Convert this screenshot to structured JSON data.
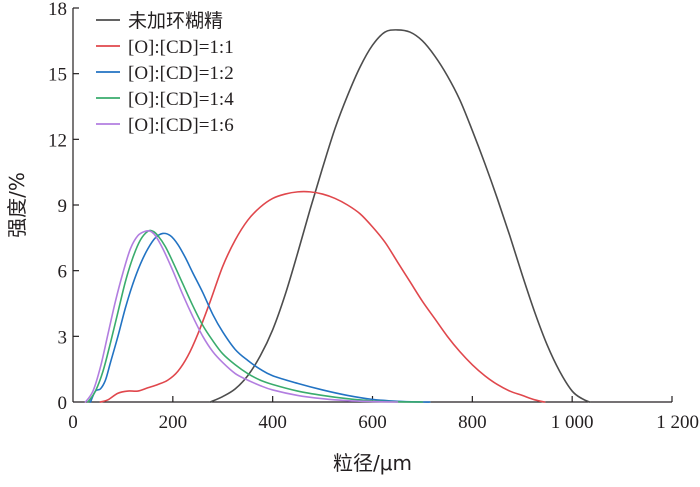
{
  "chart_data": {
    "type": "line",
    "title": "",
    "xlabel": "粒径/μm",
    "ylabel": "强度/%",
    "xlim": [
      0,
      1200
    ],
    "ylim": [
      0,
      18
    ],
    "xticks": [
      0,
      200,
      400,
      600,
      800,
      1000,
      1200
    ],
    "xtick_labels": [
      "0",
      "200",
      "400",
      "600",
      "800",
      "1 000",
      "1 200"
    ],
    "yticks": [
      0,
      3,
      6,
      9,
      12,
      15,
      18
    ],
    "ytick_labels": [
      "0",
      "3",
      "6",
      "9",
      "12",
      "15",
      "18"
    ],
    "grid": false,
    "legend_position": "top-left",
    "series": [
      {
        "name": "未加环糊精",
        "color": "#4d4d4d",
        "x": [
          275,
          300,
          325,
          350,
          375,
          400,
          425,
          450,
          475,
          500,
          525,
          550,
          575,
          600,
          625,
          650,
          675,
          700,
          725,
          750,
          775,
          800,
          825,
          850,
          875,
          900,
          925,
          950,
          975,
          1000,
          1020,
          1035
        ],
        "y": [
          0,
          0.25,
          0.6,
          1.2,
          2.1,
          3.3,
          4.9,
          6.8,
          8.8,
          10.7,
          12.5,
          14.0,
          15.3,
          16.3,
          16.9,
          17.0,
          16.9,
          16.5,
          15.8,
          14.9,
          13.8,
          12.4,
          10.9,
          9.3,
          7.6,
          5.8,
          4.1,
          2.6,
          1.4,
          0.5,
          0.15,
          0
        ]
      },
      {
        "name": "[O]:[CD]=1:1",
        "color": "#e0474c",
        "x": [
          55,
          70,
          90,
          110,
          130,
          150,
          170,
          190,
          210,
          230,
          250,
          275,
          300,
          325,
          350,
          375,
          400,
          425,
          450,
          475,
          500,
          525,
          550,
          575,
          600,
          625,
          650,
          675,
          700,
          725,
          750,
          775,
          800,
          825,
          850,
          875,
          900,
          925,
          945
        ],
        "y": [
          0,
          0.1,
          0.4,
          0.5,
          0.5,
          0.65,
          0.8,
          1.0,
          1.4,
          2.1,
          3.1,
          4.6,
          6.2,
          7.4,
          8.3,
          8.9,
          9.3,
          9.5,
          9.6,
          9.6,
          9.5,
          9.3,
          9.0,
          8.6,
          8.0,
          7.3,
          6.4,
          5.5,
          4.6,
          3.8,
          3.0,
          2.3,
          1.7,
          1.2,
          0.8,
          0.5,
          0.3,
          0.1,
          0
        ]
      },
      {
        "name": "[O]:[CD]=1:2",
        "color": "#2273c3",
        "x": [
          35,
          45,
          55,
          65,
          75,
          90,
          105,
          120,
          135,
          150,
          165,
          180,
          195,
          210,
          225,
          240,
          260,
          280,
          300,
          325,
          350,
          375,
          400,
          450,
          500,
          550,
          600,
          650,
          700,
          715
        ],
        "y": [
          0,
          0.5,
          0.6,
          1.0,
          1.8,
          3.0,
          4.3,
          5.4,
          6.3,
          7.0,
          7.5,
          7.7,
          7.6,
          7.2,
          6.6,
          5.9,
          5.0,
          4.0,
          3.2,
          2.4,
          1.9,
          1.5,
          1.2,
          0.85,
          0.55,
          0.3,
          0.12,
          0.03,
          0,
          0
        ]
      },
      {
        "name": "[O]:[CD]=1:4",
        "color": "#3aac6d",
        "x": [
          30,
          45,
          60,
          75,
          90,
          105,
          120,
          135,
          150,
          160,
          170,
          185,
          200,
          220,
          240,
          260,
          280,
          300,
          325,
          350,
          375,
          400,
          450,
          500,
          550,
          600,
          650,
          700
        ],
        "y": [
          0,
          0.5,
          1.4,
          2.7,
          4.1,
          5.5,
          6.6,
          7.4,
          7.8,
          7.8,
          7.6,
          7.1,
          6.4,
          5.4,
          4.4,
          3.5,
          2.8,
          2.2,
          1.7,
          1.3,
          1.0,
          0.8,
          0.5,
          0.3,
          0.15,
          0.05,
          0.01,
          0
        ]
      },
      {
        "name": "[O]:[CD]=1:6",
        "color": "#b27ee0",
        "x": [
          25,
          40,
          55,
          70,
          85,
          100,
          115,
          130,
          145,
          155,
          165,
          180,
          200,
          220,
          240,
          260,
          280,
          300,
          325,
          350,
          375,
          400,
          450,
          500,
          550,
          600,
          650
        ],
        "y": [
          0,
          0.5,
          1.6,
          3.1,
          4.6,
          5.9,
          7.0,
          7.6,
          7.8,
          7.8,
          7.6,
          7.0,
          6.0,
          4.9,
          3.9,
          3.0,
          2.3,
          1.8,
          1.3,
          1.0,
          0.75,
          0.55,
          0.3,
          0.15,
          0.06,
          0.02,
          0
        ]
      }
    ]
  }
}
